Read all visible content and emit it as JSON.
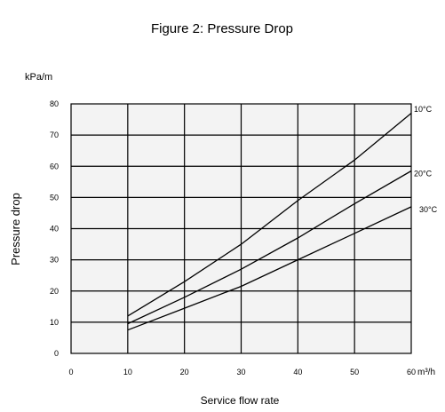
{
  "chart_data": {
    "type": "line",
    "title": "Figure 2: Pressure Drop",
    "unit_label": "kPa/m",
    "xlabel": "Service flow rate",
    "ylabel": "Pressure drop",
    "x_unit": "m³/h",
    "xlim": [
      0,
      60
    ],
    "ylim": [
      0,
      80
    ],
    "x_ticks": [
      "0",
      "10",
      "20",
      "30",
      "40",
      "50",
      "60"
    ],
    "y_ticks": [
      "0",
      "10",
      "20",
      "30",
      "40",
      "50",
      "60",
      "70",
      "80"
    ],
    "grid": true,
    "series": [
      {
        "name": "10°C",
        "x": [
          10,
          20,
          30,
          40,
          50,
          60
        ],
        "y": [
          12,
          23,
          35,
          49,
          62,
          77
        ]
      },
      {
        "name": "20°C",
        "x": [
          10,
          20,
          30,
          40,
          50,
          60
        ],
        "y": [
          9.5,
          18,
          27,
          37,
          48,
          58.5
        ]
      },
      {
        "name": "30°C",
        "x": [
          10,
          20,
          30,
          40,
          50,
          60
        ],
        "y": [
          7.5,
          14.5,
          21.5,
          30,
          38.5,
          47
        ]
      }
    ]
  }
}
